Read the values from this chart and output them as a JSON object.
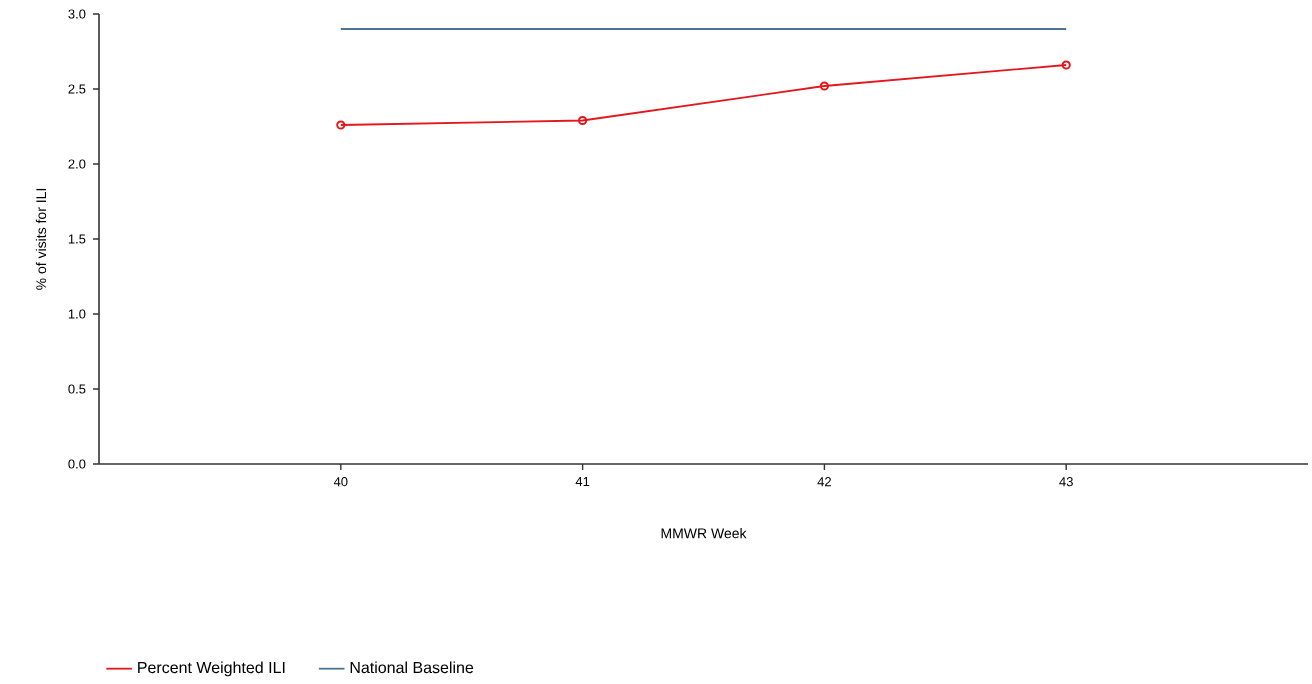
{
  "chart_data": {
    "type": "line",
    "xlabel": "MMWR Week",
    "ylabel": "% of visits for ILI",
    "xlim": [
      39,
      44
    ],
    "xticks": [
      40,
      41,
      42,
      43
    ],
    "ylim": [
      0,
      3
    ],
    "yticks": [
      {
        "value": 0,
        "label": "0.0"
      },
      {
        "value": 0.5,
        "label": "0.5"
      },
      {
        "value": 1,
        "label": "1.0"
      },
      {
        "value": 1.5,
        "label": "1.5"
      },
      {
        "value": 2,
        "label": "2.0"
      },
      {
        "value": 2.5,
        "label": "2.5"
      },
      {
        "value": 3,
        "label": "3.0"
      }
    ],
    "x": [
      40,
      41,
      42,
      43
    ],
    "series": [
      {
        "name": "Percent Weighted ILI",
        "color": "#e3171c",
        "marker": "circle",
        "values": [
          2.26,
          2.29,
          2.52,
          2.66
        ]
      },
      {
        "name": "National Baseline",
        "color": "#4a7394",
        "marker": "none",
        "values": [
          2.9,
          2.9,
          2.9,
          2.9
        ]
      }
    ],
    "grid": false,
    "legend": "bottom left"
  }
}
